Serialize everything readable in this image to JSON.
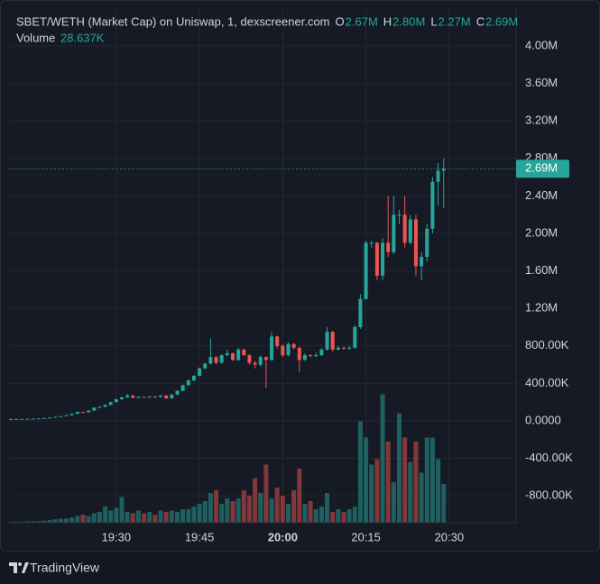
{
  "chart_data": {
    "type": "candlestick",
    "title": "SBET/WETH (Market Cap) on Uniswap, 1, dexscreener.com",
    "ohlc_legend": [
      {
        "key": "O",
        "label": "2.67M"
      },
      {
        "key": "H",
        "label": "2.80M"
      },
      {
        "key": "L",
        "label": "2.27M"
      },
      {
        "key": "C",
        "label": "2.69M"
      }
    ],
    "volume_title": "Volume",
    "volume_label": "28.637K",
    "x": [
      "19:11",
      "19:12",
      "19:13",
      "19:14",
      "19:15",
      "19:16",
      "19:17",
      "19:18",
      "19:19",
      "19:20",
      "19:21",
      "19:22",
      "19:23",
      "19:24",
      "19:25",
      "19:26",
      "19:27",
      "19:28",
      "19:29",
      "19:30",
      "19:31",
      "19:32",
      "19:33",
      "19:34",
      "19:35",
      "19:36",
      "19:37",
      "19:38",
      "19:39",
      "19:40",
      "19:41",
      "19:42",
      "19:43",
      "19:44",
      "19:45",
      "19:46",
      "19:47",
      "19:48",
      "19:49",
      "19:50",
      "19:51",
      "19:52",
      "19:53",
      "19:54",
      "19:55",
      "19:56",
      "19:57",
      "19:58",
      "19:59",
      "20:00",
      "20:01",
      "20:02",
      "20:03",
      "20:04",
      "20:05",
      "20:06",
      "20:07",
      "20:08",
      "20:09",
      "20:10",
      "20:11",
      "20:12",
      "20:13",
      "20:14",
      "20:15",
      "20:16",
      "20:17",
      "20:18",
      "20:19",
      "20:20",
      "20:21",
      "20:22",
      "20:23",
      "20:24",
      "20:25",
      "20:26",
      "20:27",
      "20:28",
      "20:29"
    ],
    "open": [
      19000,
      20000,
      20000,
      21000,
      22000,
      24000,
      26000,
      30000,
      35000,
      42000,
      50000,
      60000,
      75000,
      95000,
      90000,
      110000,
      140000,
      150000,
      170000,
      200000,
      230000,
      250000,
      270000,
      245000,
      255000,
      250000,
      260000,
      255000,
      270000,
      240000,
      280000,
      320000,
      380000,
      430000,
      480000,
      560000,
      610000,
      680000,
      620000,
      700000,
      720000,
      650000,
      760000,
      700000,
      620000,
      600000,
      680000,
      650000,
      900000,
      800000,
      700000,
      820000,
      780000,
      650000,
      700000,
      690000,
      700000,
      760000,
      950000,
      760000,
      780000,
      770000,
      780000,
      1000000,
      1300000,
      1900000,
      1900000,
      1550000,
      1900000,
      1800000,
      2200000,
      2200000,
      1900000,
      2150000,
      1650000,
      1750000,
      2050000,
      2550000,
      2670000
    ],
    "high": [
      21000,
      21000,
      22000,
      23000,
      25000,
      27000,
      31000,
      36000,
      44000,
      52000,
      62000,
      78000,
      98000,
      96000,
      112000,
      145000,
      155000,
      175000,
      205000,
      235000,
      260000,
      290000,
      275000,
      262000,
      258000,
      265000,
      265000,
      275000,
      275000,
      285000,
      325000,
      385000,
      440000,
      490000,
      570000,
      620000,
      880000,
      690000,
      710000,
      760000,
      730000,
      780000,
      770000,
      710000,
      640000,
      700000,
      690000,
      950000,
      910000,
      820000,
      840000,
      830000,
      790000,
      720000,
      710000,
      730000,
      780000,
      1000000,
      960000,
      800000,
      790000,
      800000,
      1020000,
      1350000,
      1920000,
      1920000,
      1910000,
      1950000,
      2400000,
      2400000,
      2250000,
      2400000,
      2200000,
      2200000,
      1800000,
      2100000,
      2600000,
      2750000,
      2800000
    ],
    "low": [
      18000,
      19000,
      19000,
      20000,
      21000,
      23000,
      25000,
      29000,
      34000,
      40000,
      48000,
      58000,
      72000,
      85000,
      88000,
      105000,
      135000,
      145000,
      165000,
      195000,
      225000,
      245000,
      240000,
      240000,
      245000,
      245000,
      250000,
      250000,
      235000,
      235000,
      275000,
      315000,
      375000,
      425000,
      475000,
      550000,
      600000,
      600000,
      610000,
      690000,
      640000,
      640000,
      690000,
      600000,
      560000,
      580000,
      350000,
      640000,
      770000,
      680000,
      690000,
      760000,
      520000,
      640000,
      680000,
      680000,
      690000,
      750000,
      740000,
      750000,
      760000,
      760000,
      770000,
      980000,
      1290000,
      1850000,
      1500000,
      1500000,
      1750000,
      1780000,
      2100000,
      1850000,
      1880000,
      1550000,
      1500000,
      1700000,
      2000000,
      2300000,
      2270000
    ],
    "close": [
      20000,
      20000,
      21000,
      22000,
      24000,
      26000,
      30000,
      35000,
      42000,
      50000,
      60000,
      75000,
      95000,
      90000,
      110000,
      140000,
      150000,
      170000,
      200000,
      230000,
      250000,
      270000,
      245000,
      255000,
      250000,
      260000,
      255000,
      270000,
      240000,
      280000,
      320000,
      380000,
      430000,
      480000,
      560000,
      610000,
      680000,
      620000,
      700000,
      720000,
      650000,
      760000,
      700000,
      620000,
      600000,
      680000,
      650000,
      900000,
      800000,
      700000,
      820000,
      780000,
      650000,
      700000,
      690000,
      700000,
      760000,
      950000,
      760000,
      780000,
      770000,
      780000,
      1000000,
      1300000,
      1900000,
      1900000,
      1550000,
      1900000,
      1800000,
      2200000,
      2200000,
      1900000,
      2150000,
      1650000,
      1750000,
      2050000,
      2550000,
      2670000,
      2690000
    ],
    "volume": [
      500,
      800,
      800,
      1000,
      1000,
      1200,
      1500,
      2000,
      2500,
      3000,
      3000,
      4000,
      5000,
      6000,
      5000,
      7000,
      8000,
      12000,
      9000,
      11000,
      19000,
      8000,
      7000,
      9000,
      7000,
      8000,
      6000,
      9000,
      8000,
      9000,
      8000,
      10000,
      10000,
      12000,
      14000,
      16000,
      22000,
      24000,
      14000,
      18000,
      16000,
      18000,
      24000,
      20000,
      33000,
      22000,
      43000,
      18000,
      26000,
      20000,
      14000,
      24000,
      40000,
      14000,
      16000,
      10000,
      12000,
      22000,
      8000,
      10000,
      8000,
      10000,
      12000,
      75000,
      63000,
      43000,
      47000,
      95000,
      60000,
      30000,
      81000,
      63000,
      45000,
      60000,
      37000,
      63000,
      63000,
      47000,
      28637
    ],
    "colors": {
      "up": "#26a69a",
      "down": "#ef5350"
    },
    "ylim": [
      -1087000,
      4394000
    ],
    "yticks": [
      {
        "value": -800000,
        "label": "-800.00K"
      },
      {
        "value": -400000,
        "label": "-400.00K"
      },
      {
        "value": 0,
        "label": "0.0000"
      },
      {
        "value": 400000,
        "label": "400.00K"
      },
      {
        "value": 800000,
        "label": "800.00K"
      },
      {
        "value": 1200000,
        "label": "1.20M"
      },
      {
        "value": 1600000,
        "label": "1.60M"
      },
      {
        "value": 2000000,
        "label": "2.00M"
      },
      {
        "value": 2400000,
        "label": "2.40M"
      },
      {
        "value": 2800000,
        "label": "2.80M"
      },
      {
        "value": 3200000,
        "label": "3.20M"
      },
      {
        "value": 3600000,
        "label": "3.60M"
      },
      {
        "value": 4000000,
        "label": "4.00M"
      }
    ],
    "y2lim": [
      0,
      100000
    ],
    "xticks": [
      "19:30",
      "19:45",
      "20:00",
      "20:15",
      "20:30"
    ],
    "last_label": "2.69M",
    "grid": true
  },
  "footer": {
    "brand": "TradingView"
  }
}
